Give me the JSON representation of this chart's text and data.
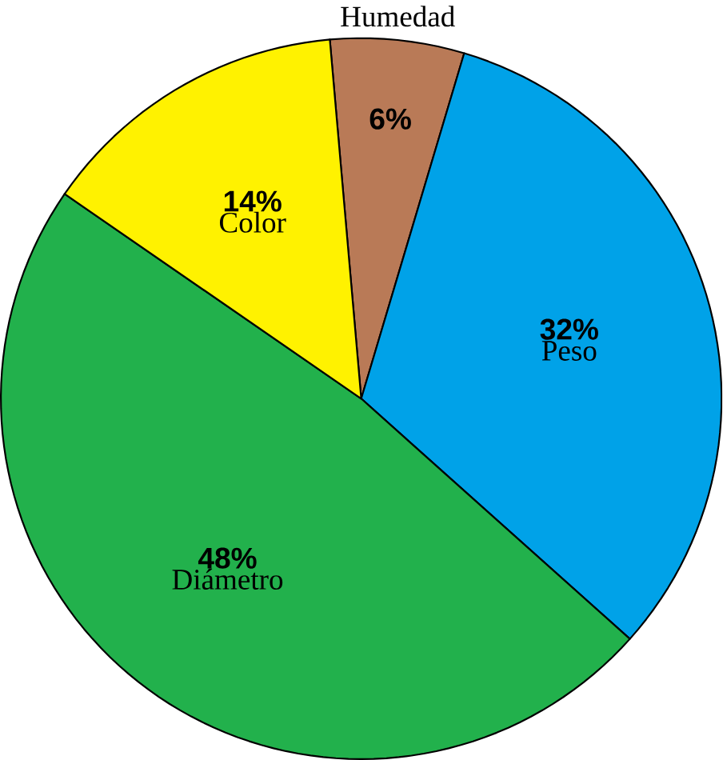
{
  "chart_data": {
    "type": "pie",
    "categories": [
      "Humedad",
      "Peso",
      "Diámetro",
      "Color"
    ],
    "values": [
      6,
      32,
      48,
      14
    ],
    "colors": [
      "#b97a57",
      "#00a2e8",
      "#22b14c",
      "#fff200"
    ],
    "value_labels": [
      "6%",
      "32%",
      "48%",
      "14%"
    ]
  }
}
